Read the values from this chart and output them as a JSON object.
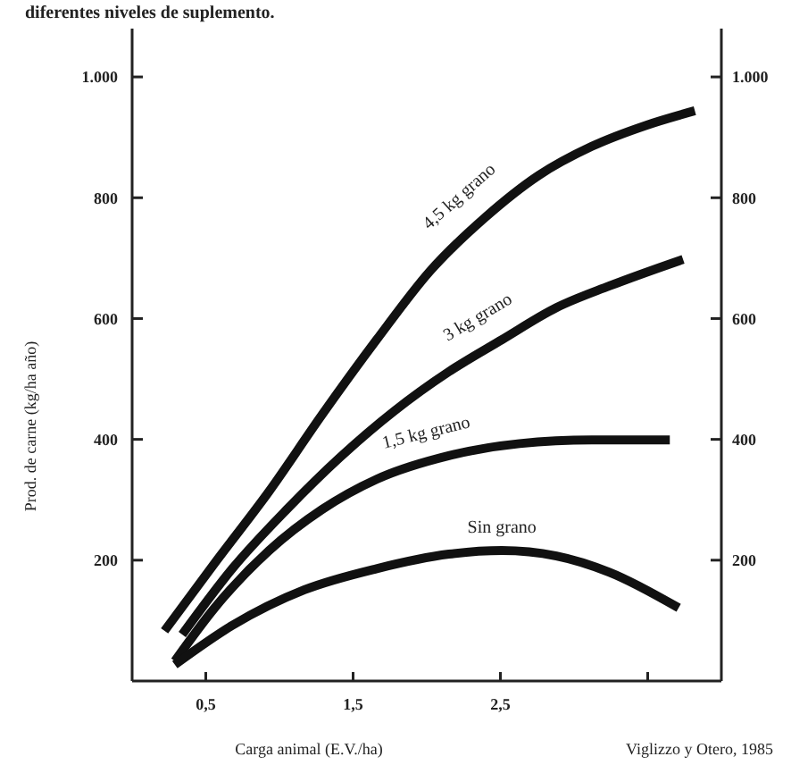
{
  "chart_data": {
    "type": "line",
    "title": "diferentes niveles de suplemento.",
    "xlabel": "Carga animal (E.V./ha)",
    "ylabel": "Prod. de carne (kg/ha año)",
    "annotations": [
      "Viglizzo y Otero, 1985"
    ],
    "xlim": [
      0,
      4
    ],
    "xticks": [
      {
        "value": 0.5,
        "label": "0,5"
      },
      {
        "value": 1.5,
        "label": "1,5"
      },
      {
        "value": 2.5,
        "label": "2,5"
      },
      {
        "value": 3.5,
        "label": null
      }
    ],
    "ylim": [
      0,
      1080
    ],
    "yticks": [
      {
        "value": 200,
        "label": "200"
      },
      {
        "value": 400,
        "label": "400"
      },
      {
        "value": 600,
        "label": "600"
      },
      {
        "value": 800,
        "label": "800"
      },
      {
        "value": 1000,
        "label": "1.000"
      }
    ],
    "y2lim": [
      0,
      1080
    ],
    "y2ticks": [
      {
        "value": 200,
        "label": "200"
      },
      {
        "value": 400,
        "label": "400"
      },
      {
        "value": 600,
        "label": "600"
      },
      {
        "value": 800,
        "label": "800"
      },
      {
        "value": 1000,
        "label": "1.000"
      }
    ],
    "grid": false,
    "marker": "none",
    "line_style": "solid",
    "series": [
      {
        "name": "4,5 kg grano",
        "color": "#111111",
        "x": [
          0.22,
          0.56,
          0.93,
          1.29,
          1.66,
          2.02,
          2.39,
          2.76,
          3.12,
          3.49,
          3.82
        ],
        "values": [
          83,
          195,
          314,
          441,
          565,
          678,
          766,
          837,
          885,
          920,
          944
        ]
      },
      {
        "name": "3 kg grano",
        "color": "#111111",
        "x": [
          0.34,
          0.68,
          1.05,
          1.41,
          1.78,
          2.15,
          2.51,
          2.88,
          3.24,
          3.74
        ],
        "values": [
          77,
          186,
          284,
          370,
          447,
          512,
          565,
          618,
          654,
          698
        ]
      },
      {
        "name": "1,5 kg grano",
        "color": "#111111",
        "x": [
          0.29,
          0.56,
          0.93,
          1.29,
          1.66,
          2.15,
          2.63,
          3.12,
          3.65
        ],
        "values": [
          33,
          121,
          216,
          284,
          334,
          373,
          393,
          399,
          399
        ]
      },
      {
        "name": "Sin grano",
        "color": "#111111",
        "x": [
          0.29,
          0.68,
          1.17,
          1.66,
          2.15,
          2.51,
          2.88,
          3.24,
          3.71
        ],
        "values": [
          27,
          92,
          151,
          186,
          210,
          216,
          207,
          180,
          121
        ]
      }
    ]
  }
}
